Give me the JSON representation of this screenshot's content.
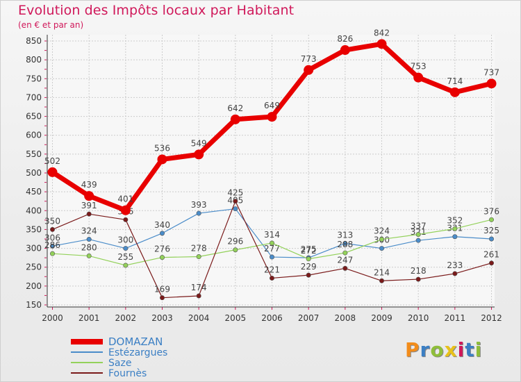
{
  "page": {
    "title": "Evolution des Impôts locaux par Habitant",
    "subtitle": "(en € et par an)",
    "logo_text": "Proxiti",
    "logo_colors": [
      "#f28c1b",
      "#3b7fc4",
      "#8fbe3a",
      "#e8c11a",
      "#d0185a",
      "#3b7fc4",
      "#8fbe3a"
    ]
  },
  "chart_data": {
    "type": "line",
    "title": "Evolution des Impôts locaux par Habitant",
    "subtitle": "(en € et par an)",
    "x": [
      "2000",
      "2001",
      "2002",
      "2003",
      "2004",
      "2005",
      "2006",
      "2007",
      "2008",
      "2009",
      "2010",
      "2011",
      "2012"
    ],
    "yticks": [
      150,
      200,
      250,
      300,
      350,
      400,
      450,
      500,
      550,
      600,
      650,
      700,
      750,
      800,
      850
    ],
    "ylim": [
      150,
      850
    ],
    "grid": true,
    "legend_position": "bottom-left",
    "series": [
      {
        "name": "DOMAZAN",
        "color": "#e80000",
        "emphasis": true,
        "values": [
          502,
          439,
          401,
          536,
          549,
          642,
          649,
          773,
          826,
          842,
          753,
          714,
          737
        ]
      },
      {
        "name": "Estézargues",
        "color": "#4a8cc9",
        "values": [
          306,
          324,
          300,
          340,
          393,
          405,
          277,
          275,
          313,
          300,
          321,
          331,
          325
        ]
      },
      {
        "name": "Saze",
        "color": "#93d15a",
        "values": [
          286,
          280,
          255,
          276,
          278,
          296,
          314,
          272,
          288,
          324,
          337,
          352,
          376
        ]
      },
      {
        "name": "Fournès",
        "color": "#7a1a1a",
        "values": [
          350,
          391,
          376,
          169,
          174,
          425,
          221,
          229,
          247,
          214,
          218,
          233,
          261
        ]
      }
    ]
  }
}
